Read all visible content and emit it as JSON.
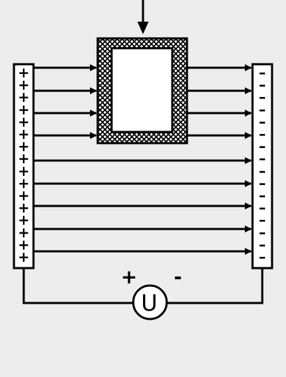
{
  "diagram": {
    "background_color": "#ededed",
    "ink_color": "#000000",
    "box_fill_color": "#ffffff",
    "left_plate": {
      "sign": "+",
      "count": 16
    },
    "right_plate": {
      "sign": "–",
      "count": 16
    },
    "polarity_plus": "+",
    "polarity_minus": "-",
    "source_symbol": "U"
  }
}
